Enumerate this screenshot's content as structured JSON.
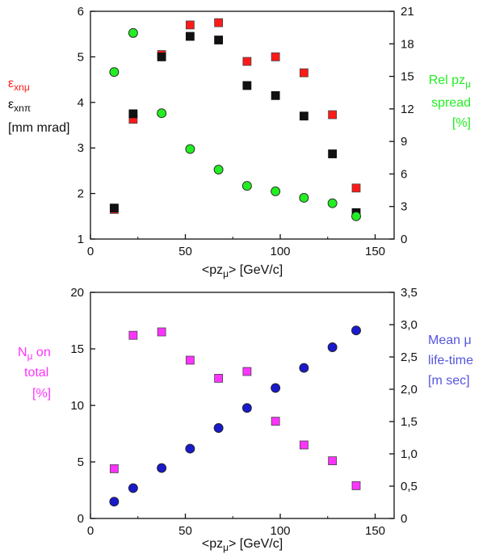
{
  "colors": {
    "emit_mu": "#ff1a1a",
    "emit_pi": "#111111",
    "spread": "#22ee22",
    "fraction": "#ff33ff",
    "lifetime": "#1a1acc",
    "lifetime_label": "#5555dd"
  },
  "chart_data": [
    {
      "type": "scatter",
      "xlabel": "<pzμ>  [GeV/c]",
      "xlim": [
        0,
        160
      ],
      "xticks": [
        0,
        50,
        100,
        150
      ],
      "ylim_left": [
        1,
        6
      ],
      "yticks_left": [
        1,
        2,
        3,
        4,
        5,
        6
      ],
      "ylim_right": [
        0,
        21
      ],
      "yticks_right": [
        0,
        3,
        6,
        9,
        12,
        15,
        18,
        21
      ],
      "ylabel_left": [
        "εxnμ",
        "εxnπ",
        "[mm mrad]"
      ],
      "ylabel_right": [
        "Rel pzμ",
        "spread",
        "[%]"
      ],
      "grid": false,
      "series": [
        {
          "label": "εxnμ",
          "marker": "square",
          "color": "#ff1a1a",
          "axis": "left",
          "x": [
            12.5,
            22.5,
            37.5,
            52.5,
            67.5,
            82.5,
            97.5,
            112.5,
            127.5,
            140
          ],
          "y": [
            1.65,
            3.63,
            5.05,
            5.7,
            5.75,
            4.9,
            5.0,
            4.65,
            3.73,
            2.12
          ]
        },
        {
          "label": "εxnπ",
          "marker": "square",
          "color": "#111111",
          "axis": "left",
          "x": [
            12.5,
            22.5,
            37.5,
            52.5,
            67.5,
            82.5,
            97.5,
            112.5,
            127.5,
            140
          ],
          "y": [
            1.68,
            3.75,
            5.0,
            5.45,
            5.37,
            4.37,
            4.15,
            3.7,
            2.87,
            1.58
          ]
        },
        {
          "label": "Rel pzμ spread",
          "marker": "circle",
          "color": "#22ee22",
          "axis": "right",
          "x": [
            12.5,
            22.5,
            37.5,
            52.5,
            67.5,
            82.5,
            97.5,
            112.5,
            127.5,
            140
          ],
          "y": [
            15.4,
            19.0,
            11.6,
            8.3,
            6.4,
            4.9,
            4.4,
            3.8,
            3.3,
            2.1
          ]
        }
      ]
    },
    {
      "type": "scatter",
      "xlabel": "<pzμ>  [GeV/c]",
      "xlim": [
        0,
        160
      ],
      "xticks": [
        0,
        50,
        100,
        150
      ],
      "ylim_left": [
        0,
        20
      ],
      "yticks_left": [
        0,
        5,
        10,
        15,
        20
      ],
      "ylim_right": [
        0,
        3.5
      ],
      "yticks_right": [
        "0",
        "0,5",
        "1,0",
        "1,5",
        "2,0",
        "2,5",
        "3,0",
        "3,5"
      ],
      "ylabel_left": [
        "Nμ on",
        "total",
        "[%]"
      ],
      "ylabel_right": [
        "Mean μ",
        "life-time",
        "[m sec]"
      ],
      "grid": false,
      "series": [
        {
          "label": "Nμ on total",
          "marker": "square",
          "color": "#ff33ff",
          "axis": "left",
          "x": [
            12.5,
            22.5,
            37.5,
            52.5,
            67.5,
            82.5,
            97.5,
            112.5,
            127.5,
            140
          ],
          "y": [
            4.4,
            16.2,
            16.5,
            14.0,
            12.4,
            13.0,
            8.6,
            6.5,
            5.1,
            2.9
          ]
        },
        {
          "label": "Mean μ life-time",
          "marker": "circle",
          "color": "#1a1acc",
          "axis": "right",
          "x": [
            12.5,
            22.5,
            37.5,
            52.5,
            67.5,
            82.5,
            97.5,
            112.5,
            127.5,
            140
          ],
          "y": [
            0.26,
            0.47,
            0.78,
            1.08,
            1.4,
            1.71,
            2.02,
            2.33,
            2.65,
            2.91
          ]
        }
      ]
    }
  ]
}
